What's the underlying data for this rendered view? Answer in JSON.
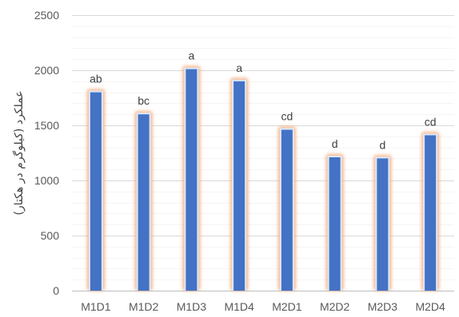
{
  "chart_data": {
    "type": "bar",
    "categories": [
      "M1D1",
      "M1D2",
      "M1D3",
      "M1D4",
      "M2D1",
      "M2D2",
      "M2D3",
      "M2D4"
    ],
    "values": [
      1800,
      1600,
      2010,
      1900,
      1460,
      1210,
      1200,
      1410
    ],
    "data_labels": [
      "ab",
      "bc",
      "a",
      "a",
      "cd",
      "d",
      "d",
      "cd"
    ],
    "ylabel": "عملکرد (کیلوگرم در هکتار)",
    "ylim": [
      0,
      2500
    ],
    "yticks": [
      0,
      500,
      1000,
      1500,
      2000,
      2500
    ],
    "grid": true,
    "legend": "none",
    "colors": {
      "bar_fill": "#4472c4",
      "bar_outline": "#dde8f7",
      "bar_glow": "#f4b183",
      "gridline": "#d9d9d9",
      "text": "#595959"
    }
  }
}
